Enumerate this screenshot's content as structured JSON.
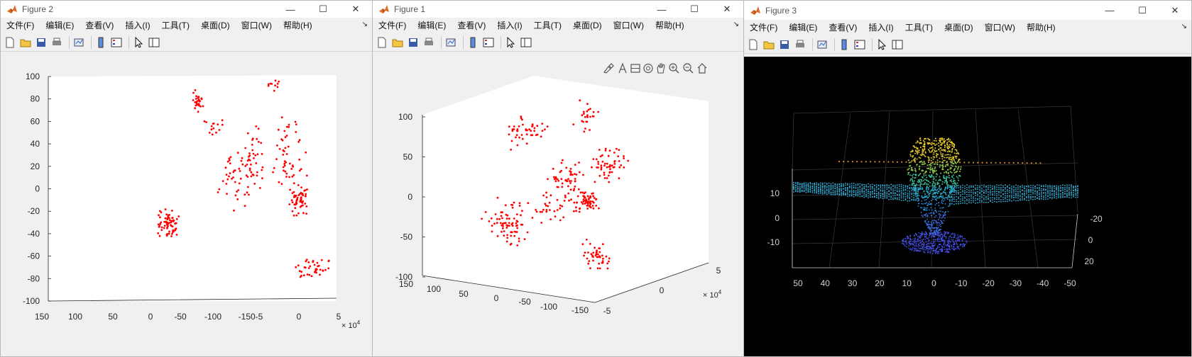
{
  "menu_labels": [
    "文件(F)",
    "编辑(E)",
    "查看(V)",
    "插入(I)",
    "工具(T)",
    "桌面(D)",
    "窗口(W)",
    "帮助(H)"
  ],
  "window_controls": {
    "minimize": "—",
    "maximize": "☐",
    "close": "✕"
  },
  "toolbar_icons": [
    "new-figure-icon",
    "open-file-icon",
    "save-icon",
    "print-icon",
    "link-plot-icon",
    "colorbar-icon",
    "legend-icon",
    "select-arrow-icon",
    "property-inspector-icon"
  ],
  "axes_toolbar_icons": [
    "brush-icon",
    "data-tips-icon",
    "rotate-3d-icon",
    "pan-icon",
    "zoom-in-icon",
    "zoom-out-icon",
    "home-icon"
  ],
  "colors": {
    "points": "#ff0000",
    "fig3_bg": "#000000",
    "fig_bg": "#f0f0f0"
  },
  "figures": [
    {
      "title": "Figure 2",
      "chart_data": {
        "type": "scatter",
        "title": "",
        "y_ticks": [
          "100",
          "80",
          "60",
          "40",
          "20",
          "0",
          "-20",
          "-40",
          "-60",
          "-80",
          "-100"
        ],
        "x_ticks": [
          "150",
          "100",
          "50",
          "0",
          "-50",
          "-100",
          "-150-5",
          "0",
          "5"
        ],
        "x_exponent": "× 10",
        "x_exponent_power": "4",
        "ylim": [
          -100,
          100
        ],
        "xlim": [
          150,
          -150
        ],
        "clusters": [
          {
            "cx": -5,
            "cy": 78,
            "sx": 4,
            "sy": 6,
            "n": 30
          },
          {
            "cx": -20,
            "cy": 55,
            "sx": 8,
            "sy": 6,
            "n": 14
          },
          {
            "cx": -85,
            "cy": 94,
            "sx": 7,
            "sy": 6,
            "n": 10
          },
          {
            "cx": -60,
            "cy": 30,
            "sx": 10,
            "sy": 18,
            "n": 40
          },
          {
            "cx": -100,
            "cy": 30,
            "sx": 14,
            "sy": 22,
            "n": 50
          },
          {
            "cx": -110,
            "cy": -10,
            "sx": 6,
            "sy": 10,
            "n": 60
          },
          {
            "cx": -125,
            "cy": -70,
            "sx": 12,
            "sy": 8,
            "n": 40
          },
          {
            "cx": 25,
            "cy": -30,
            "sx": 8,
            "sy": 10,
            "n": 70
          },
          {
            "cx": -45,
            "cy": 5,
            "sx": 15,
            "sy": 20,
            "n": 40
          }
        ]
      }
    },
    {
      "title": "Figure 1",
      "chart_data": {
        "type": "scatter",
        "title": "",
        "z_ticks": [
          "100",
          "50",
          "0",
          "-50",
          "-100"
        ],
        "x_ticks": [
          "150",
          "100",
          "50",
          "0",
          "-50",
          "-100",
          "-150"
        ],
        "y_ticks": [
          "5",
          "0",
          "-5"
        ],
        "exponent": "× 10",
        "exponent_power": "4",
        "zlim": [
          -100,
          100
        ]
      }
    },
    {
      "title": "Figure 3",
      "chart_data": {
        "type": "scatter",
        "title": "",
        "z_ticks": [
          "10",
          "0",
          "-10"
        ],
        "x_ticks": [
          "50",
          "40",
          "30",
          "20",
          "10",
          "0",
          "-10",
          "-20",
          "-30",
          "-40",
          "-50"
        ],
        "y_ticks": [
          "-20",
          "0",
          "20"
        ],
        "colormap": "parula"
      }
    }
  ]
}
